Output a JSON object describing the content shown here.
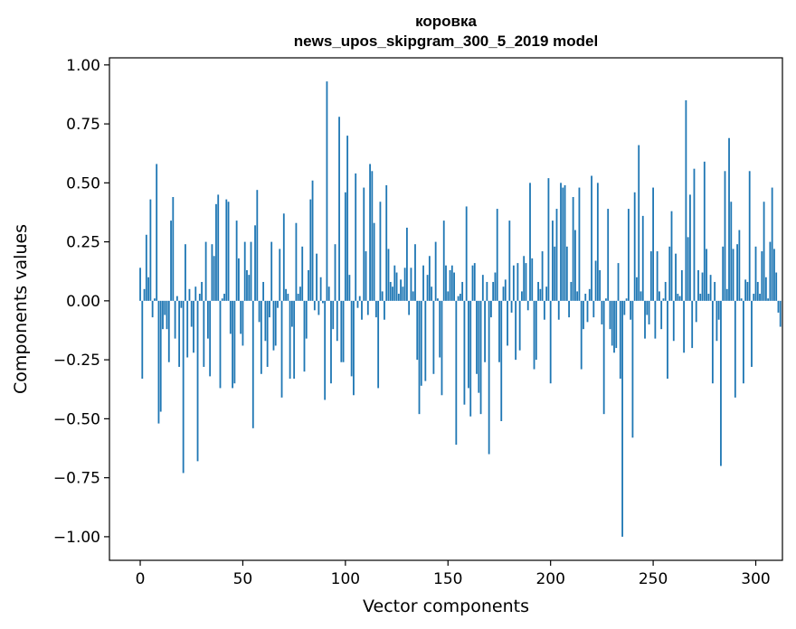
{
  "chart_data": {
    "type": "bar",
    "title": "коровка",
    "subtitle": "news_upos_skipgram_300_5_2019 model",
    "xlabel": "Vector components",
    "ylabel": "Components values",
    "xlim": [
      -15,
      313
    ],
    "ylim": [
      -1.1,
      1.03
    ],
    "xticks": [
      0,
      50,
      100,
      150,
      200,
      250,
      300
    ],
    "xtick_labels": [
      "0",
      "50",
      "100",
      "150",
      "200",
      "250",
      "300"
    ],
    "yticks": [
      1.0,
      0.75,
      0.5,
      0.25,
      0.0,
      -0.25,
      -0.5,
      -0.75,
      -1.0
    ],
    "ytick_labels": [
      "1.00",
      "0.75",
      "0.50",
      "0.25",
      "0.00",
      "−0.25",
      "−0.50",
      "−0.75",
      "−1.00"
    ],
    "bar_color": "#1f77b4",
    "series": [
      {
        "name": "коровка",
        "values": [
          0.14,
          -0.33,
          0.05,
          0.28,
          0.1,
          0.43,
          -0.07,
          0.01,
          0.58,
          -0.52,
          -0.47,
          -0.12,
          -0.06,
          -0.12,
          -0.26,
          0.34,
          0.44,
          -0.16,
          0.02,
          -0.28,
          -0.03,
          -0.73,
          0.24,
          -0.24,
          0.05,
          -0.11,
          -0.22,
          0.06,
          -0.68,
          0.03,
          0.08,
          -0.28,
          0.25,
          -0.16,
          -0.32,
          0.24,
          0.19,
          0.41,
          0.45,
          -0.37,
          0.01,
          0.03,
          0.43,
          0.42,
          -0.14,
          -0.37,
          -0.35,
          0.34,
          0.18,
          -0.14,
          -0.19,
          0.25,
          0.13,
          0.11,
          0.25,
          -0.54,
          0.32,
          0.47,
          -0.09,
          -0.31,
          0.08,
          -0.17,
          -0.28,
          -0.07,
          0.25,
          -0.21,
          -0.19,
          -0.03,
          0.22,
          -0.41,
          0.37,
          0.05,
          0.03,
          -0.33,
          -0.11,
          -0.33,
          0.33,
          0.03,
          0.06,
          0.23,
          -0.3,
          -0.16,
          0.13,
          0.43,
          0.51,
          -0.04,
          0.2,
          -0.06,
          0.1,
          -0.01,
          -0.42,
          0.93,
          0.06,
          -0.35,
          -0.12,
          0.24,
          -0.17,
          0.78,
          -0.26,
          -0.26,
          0.46,
          0.7,
          0.11,
          -0.32,
          -0.4,
          0.54,
          -0.03,
          0.02,
          -0.08,
          0.48,
          0.21,
          -0.06,
          0.58,
          0.55,
          0.33,
          -0.07,
          -0.37,
          0.42,
          0.04,
          -0.08,
          0.49,
          0.22,
          0.08,
          0.06,
          0.15,
          0.12,
          0.03,
          0.09,
          0.06,
          0.14,
          0.31,
          -0.06,
          0.14,
          0.04,
          0.24,
          -0.25,
          -0.48,
          -0.36,
          0.15,
          -0.34,
          0.11,
          0.19,
          0.06,
          -0.31,
          0.25,
          0.01,
          -0.24,
          -0.4,
          0.34,
          0.15,
          0.04,
          0.13,
          0.15,
          0.12,
          -0.61,
          0.02,
          0.03,
          0.08,
          -0.44,
          0.4,
          -0.37,
          -0.49,
          0.15,
          0.16,
          -0.31,
          -0.39,
          -0.48,
          0.11,
          -0.26,
          0.08,
          -0.65,
          -0.07,
          0.08,
          0.12,
          0.39,
          -0.26,
          -0.51,
          0.06,
          0.09,
          -0.19,
          0.34,
          -0.05,
          0.15,
          -0.25,
          0.16,
          -0.21,
          0.04,
          0.19,
          0.16,
          -0.04,
          0.5,
          0.18,
          -0.29,
          -0.25,
          0.08,
          0.05,
          0.21,
          -0.08,
          0.06,
          0.52,
          -0.35,
          0.34,
          0.23,
          0.39,
          -0.08,
          0.5,
          0.48,
          0.49,
          0.23,
          -0.07,
          0.08,
          0.44,
          0.3,
          0.04,
          0.48,
          -0.29,
          -0.12,
          0.03,
          -0.09,
          0.05,
          0.53,
          -0.07,
          0.17,
          0.5,
          0.13,
          -0.1,
          -0.48,
          0.01,
          0.39,
          -0.12,
          -0.19,
          -0.22,
          -0.2,
          0.16,
          -0.33,
          -1.0,
          -0.06,
          0.01,
          0.39,
          -0.08,
          -0.58,
          0.46,
          0.1,
          0.66,
          0.04,
          0.36,
          -0.16,
          -0.06,
          -0.1,
          0.21,
          0.48,
          -0.16,
          0.21,
          0.04,
          -0.12,
          0.01,
          0.08,
          -0.33,
          0.23,
          0.38,
          -0.17,
          0.2,
          0.03,
          0.02,
          0.13,
          -0.22,
          0.85,
          0.27,
          0.45,
          -0.2,
          0.56,
          -0.09,
          0.13,
          0.03,
          0.12,
          0.59,
          0.22,
          0.03,
          0.11,
          -0.35,
          0.08,
          -0.17,
          -0.08,
          -0.7,
          0.23,
          0.55,
          0.05,
          0.69,
          0.42,
          0.22,
          -0.41,
          0.24,
          0.3,
          0.01,
          -0.35,
          0.09,
          0.08,
          0.55,
          -0.28,
          0.03,
          0.23,
          0.08,
          0.03,
          0.21,
          0.42,
          0.1,
          0.01,
          0.25,
          0.48,
          0.22,
          0.12,
          -0.05,
          -0.11
        ]
      }
    ]
  }
}
